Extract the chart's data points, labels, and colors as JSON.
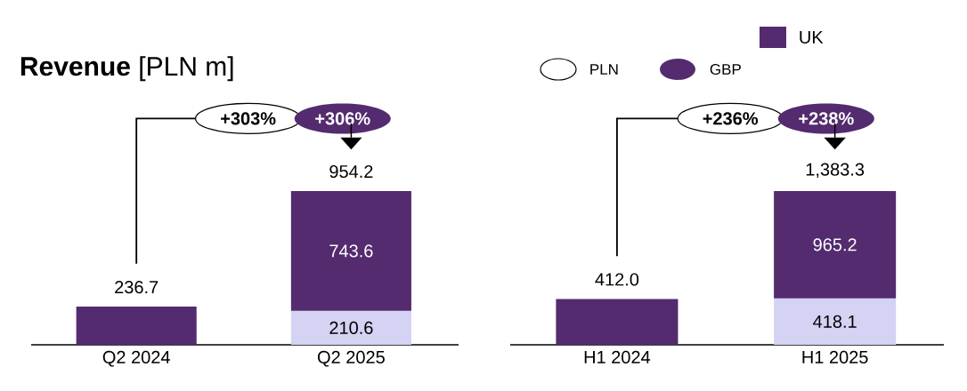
{
  "chart_data": [
    {
      "type": "bar",
      "title": "**Revenue** [PLN m]",
      "stacked": true,
      "categories": [
        "Q2 2024",
        "Q2 2025"
      ],
      "series": [
        {
          "color": "#d4d3f3",
          "values": [
            null,
            210.6
          ],
          "value_labels": [
            null,
            "210.6"
          ]
        },
        {
          "color": "#532b6e",
          "values": [
            236.7,
            743.6
          ],
          "value_labels": [
            null,
            "743.6"
          ]
        }
      ],
      "totals": [
        "236.7",
        "954.2"
      ],
      "annotations": [
        "+303%",
        "+306%"
      ]
    },
    {
      "type": "bar",
      "stacked": true,
      "categories": [
        "H1 2024",
        "H1 2025"
      ],
      "legend": "top",
      "series": [
        {
          "color": "#d4d3f3",
          "values": [
            null,
            418.1
          ],
          "value_labels": [
            null,
            "418.1"
          ]
        },
        {
          "name": "UK",
          "color": "#532b6e",
          "values": [
            412.0,
            965.2
          ],
          "value_labels": [
            null,
            "965.2"
          ]
        }
      ],
      "totals": [
        "412.0",
        "1,383.3"
      ],
      "annotations": [
        "+236%",
        "+238%",
        "PLN",
        "GBP"
      ]
    }
  ]
}
